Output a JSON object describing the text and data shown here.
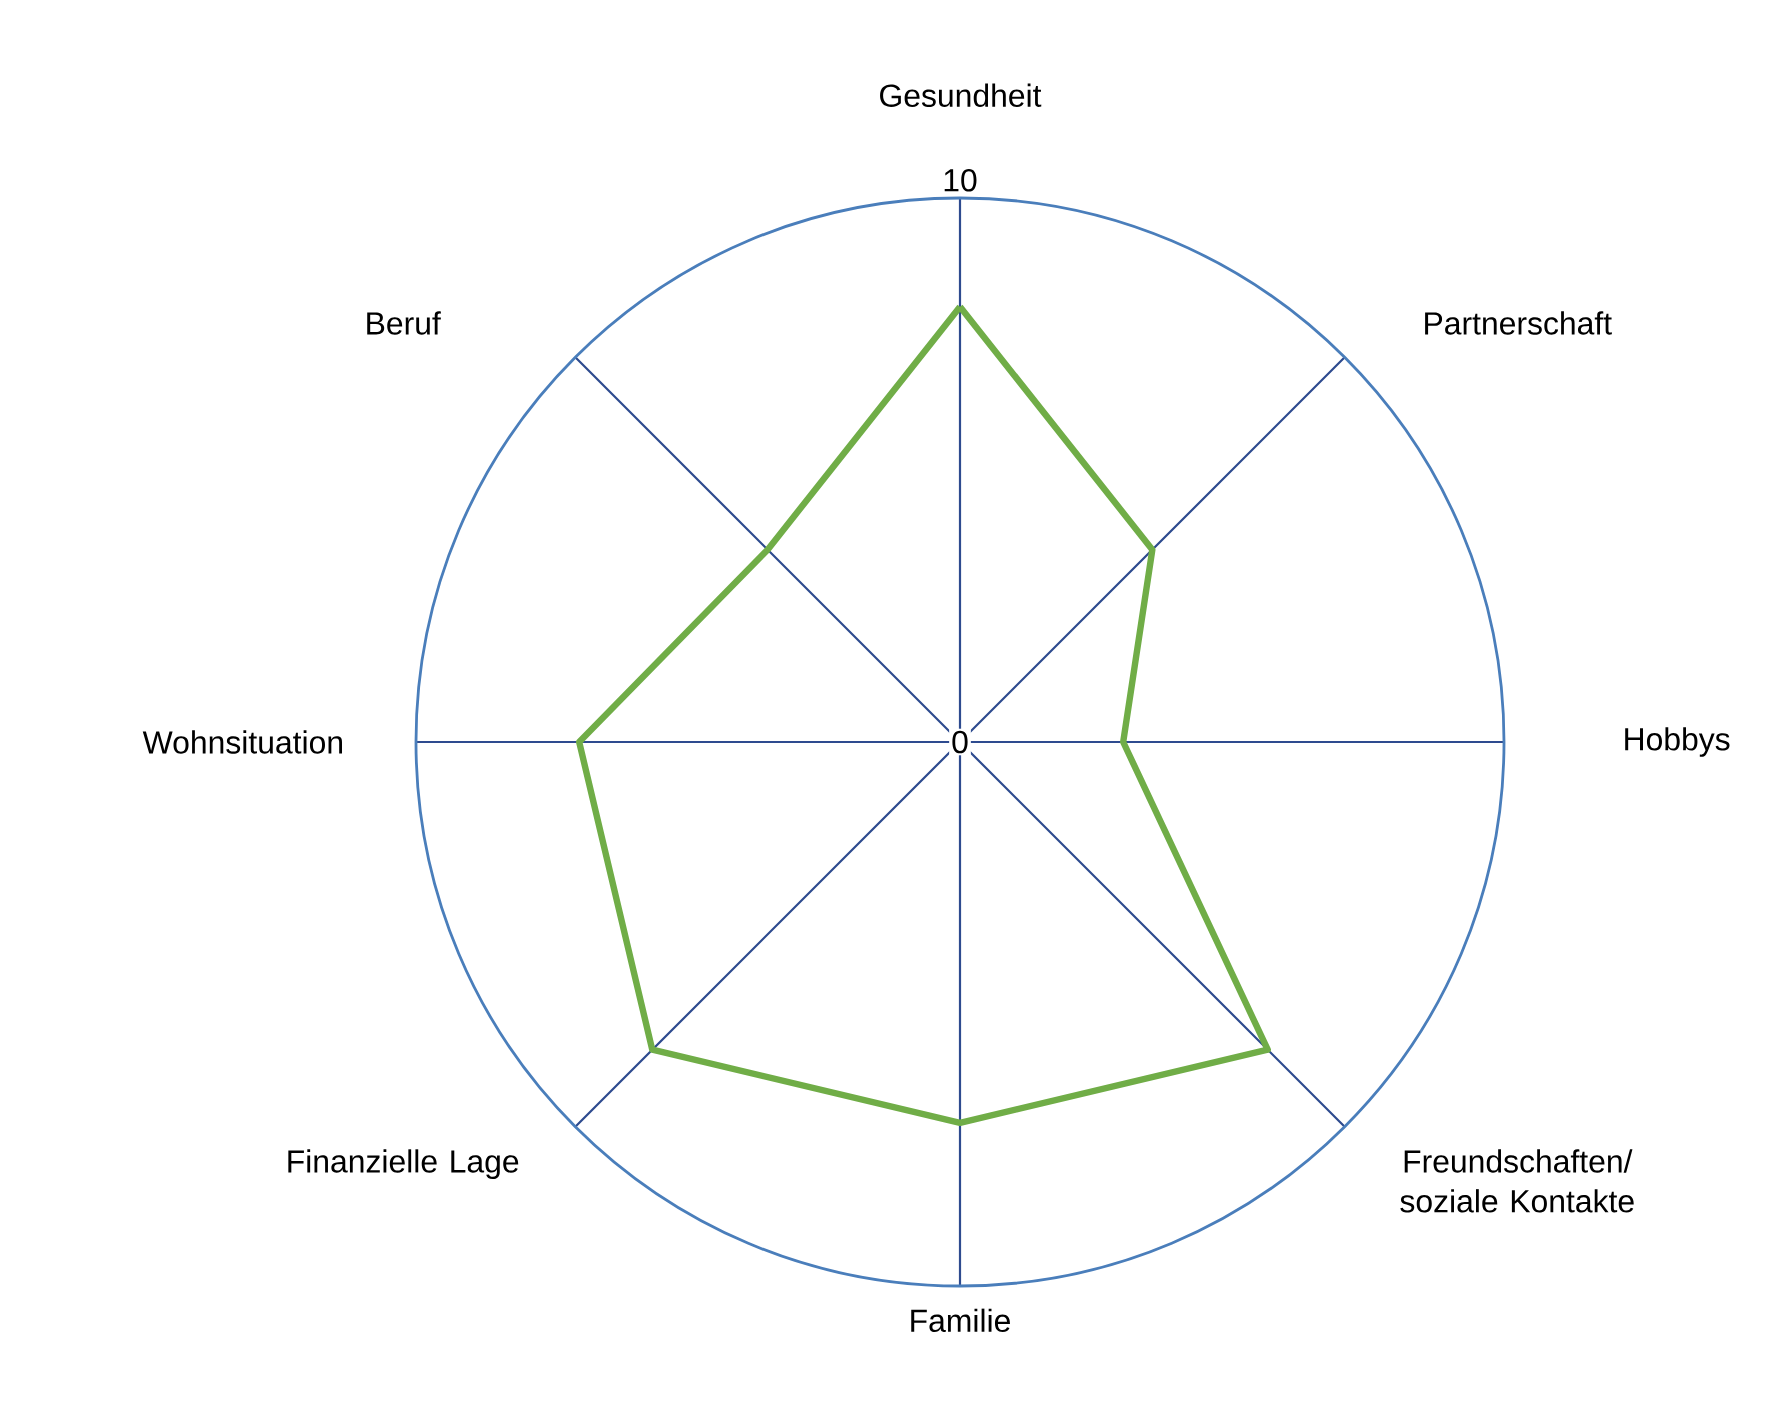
{
  "chart_data": {
    "type": "radar",
    "categories": [
      "Gesundheit",
      "Partnerschaft",
      "Hobbys",
      "Freundschaften/ soziale Kontakte",
      "Familie",
      "Finanzielle Lage",
      "Wohnsituation",
      "Beruf"
    ],
    "series": [
      {
        "color": "#70ad47",
        "values": [
          8,
          5,
          3,
          8,
          7,
          8,
          7,
          5
        ]
      }
    ],
    "ylim": [
      0,
      10
    ],
    "yticks": [
      0,
      10
    ],
    "grid": true
  }
}
